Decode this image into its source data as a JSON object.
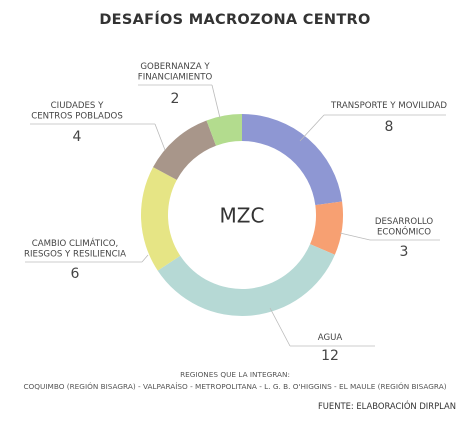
{
  "chart_data": {
    "type": "pie",
    "title": "DESAFÍOS MACROZONA CENTRO",
    "center_label": "MZC",
    "slices": [
      {
        "label_lines": [
          "TRANSPORTE Y MOVILIDAD"
        ],
        "value": 8,
        "color": "#8e97d3"
      },
      {
        "label_lines": [
          "DESARROLLO",
          "ECONÓMICO"
        ],
        "value": 3,
        "color": "#f7a072"
      },
      {
        "label_lines": [
          "AGUA"
        ],
        "value": 12,
        "color": "#b6d9d5"
      },
      {
        "label_lines": [
          "CAMBIO CLIMÁTICO,",
          "RIESGOS Y RESILIENCIA"
        ],
        "value": 6,
        "color": "#e6e585"
      },
      {
        "label_lines": [
          "CIUDADES Y",
          "CENTROS POBLADOS"
        ],
        "value": 4,
        "color": "#a8968a"
      },
      {
        "label_lines": [
          "GOBERNANZA Y",
          "FINANCIAMIENTO"
        ],
        "value": 2,
        "color": "#b3dc8e"
      }
    ]
  },
  "footer": {
    "regions_title": "REGIONES QUE LA INTEGRAN:",
    "regions_list": "COQUIMBO (REGIÓN BISAGRA) -  VALPARAÍSO - METROPOLITANA  - L. G. B. O'HIGGINS - EL MAULE (REGIÓN BISAGRA)",
    "source": "FUENTE: ELABORACIÓN DIRPLAN"
  }
}
